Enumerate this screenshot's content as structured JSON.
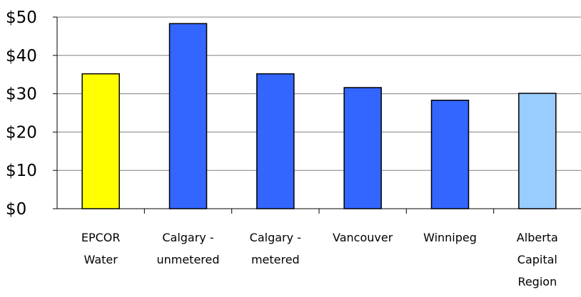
{
  "chart_data": {
    "type": "bar",
    "title": "",
    "xlabel": "",
    "ylabel": "",
    "categories": [
      [
        "EPCOR",
        "Water"
      ],
      [
        "Calgary -",
        "unmetered"
      ],
      [
        "Calgary -",
        "metered"
      ],
      [
        "Vancouver"
      ],
      [
        "Winnipeg"
      ],
      [
        "Alberta",
        "Capital",
        "Region"
      ]
    ],
    "values": [
      35.2,
      48.3,
      35.2,
      31.6,
      28.3,
      30.1
    ],
    "bar_colors": [
      "#ffff00",
      "#3366ff",
      "#3366ff",
      "#3366ff",
      "#3366ff",
      "#99ccff"
    ],
    "ylim": [
      0,
      50
    ],
    "yticks": [
      0,
      10,
      20,
      30,
      40,
      50
    ],
    "ytick_labels": [
      "$0",
      "$10",
      "$20",
      "$30",
      "$40",
      "$50"
    ],
    "grid": true,
    "legend": "none"
  }
}
